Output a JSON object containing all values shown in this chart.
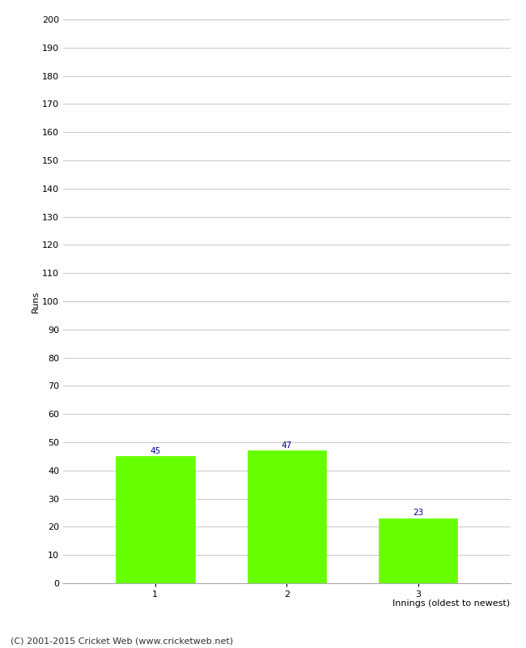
{
  "categories": [
    "1",
    "2",
    "3"
  ],
  "values": [
    45,
    47,
    23
  ],
  "bar_color": "#66ff00",
  "bar_edge_color": "#66ff00",
  "ylabel": "Runs",
  "xlabel": "Innings (oldest to newest)",
  "ylim": [
    0,
    200
  ],
  "ytick_step": 10,
  "value_label_color": "#000099",
  "value_label_fontsize": 7.5,
  "axis_label_fontsize": 8,
  "tick_fontsize": 8,
  "footer_text": "(C) 2001-2015 Cricket Web (www.cricketweb.net)",
  "footer_fontsize": 8,
  "background_color": "#ffffff",
  "grid_color": "#cccccc",
  "bar_width": 0.6
}
